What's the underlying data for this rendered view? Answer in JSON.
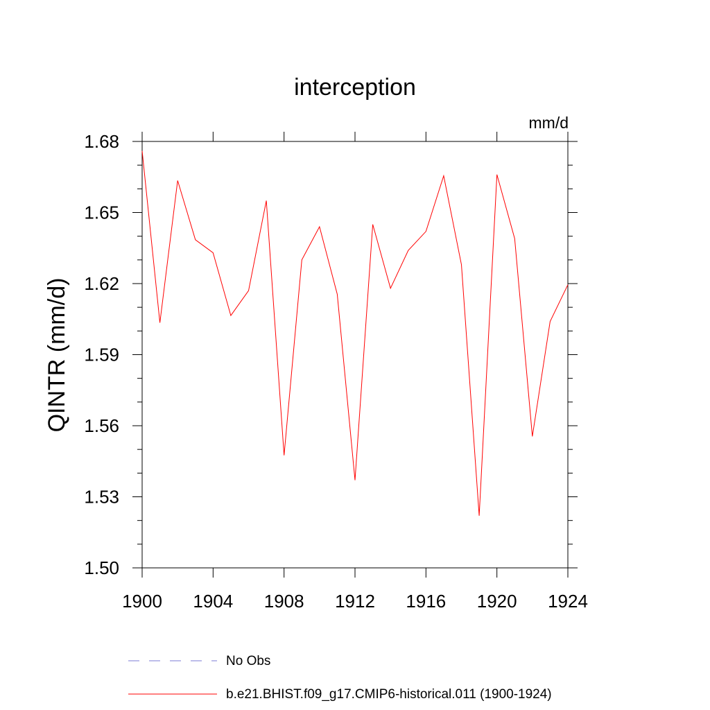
{
  "chart_data": {
    "type": "line",
    "title": "interception",
    "units": "mm/d",
    "ylabel": "QINTR  (mm/d)",
    "xlabel": "",
    "xlim": [
      1900,
      1924
    ],
    "ylim": [
      1.5,
      1.68
    ],
    "x_ticks": [
      "1900",
      "1904",
      "1908",
      "1912",
      "1916",
      "1920",
      "1924"
    ],
    "y_ticks": [
      "1.50",
      "1.53",
      "1.56",
      "1.59",
      "1.62",
      "1.65",
      "1.68"
    ],
    "x": [
      1900,
      1901,
      1902,
      1903,
      1904,
      1905,
      1906,
      1907,
      1908,
      1909,
      1910,
      1911,
      1912,
      1913,
      1914,
      1915,
      1916,
      1917,
      1918,
      1919,
      1920,
      1921,
      1922,
      1923,
      1924
    ],
    "series": [
      {
        "name": "b.e21.BHIST.f09_g17.CMIP6-historical.011 (1900-1924)",
        "color": "#ff0000",
        "values": [
          1.676,
          1.6035,
          1.6635,
          1.6385,
          1.633,
          1.6065,
          1.617,
          1.655,
          1.5475,
          1.63,
          1.644,
          1.6155,
          1.537,
          1.645,
          1.618,
          1.634,
          1.642,
          1.6655,
          1.628,
          1.522,
          1.666,
          1.639,
          1.5555,
          1.604,
          1.6195
        ]
      }
    ],
    "legend": [
      {
        "label": "No Obs",
        "style": "dashed",
        "color": "#7b7bd6"
      },
      {
        "label": "b.e21.BHIST.f09_g17.CMIP6-historical.011 (1900-1924)",
        "style": "solid",
        "color": "#ff0000"
      }
    ],
    "legend_position": "bottom",
    "grid": false
  }
}
